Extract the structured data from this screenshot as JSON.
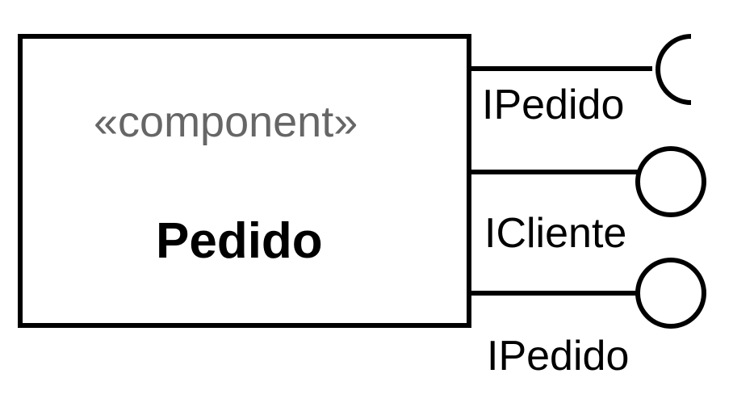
{
  "component": {
    "stereotype": "«component»",
    "name": "Pedido"
  },
  "interfaces": [
    {
      "label": "IPedido",
      "kind": "required",
      "symbol": "socket"
    },
    {
      "label": "ICliente",
      "kind": "provided",
      "symbol": "lollipop"
    },
    {
      "label": "IPedido",
      "kind": "provided",
      "symbol": "lollipop"
    }
  ],
  "colors": {
    "stroke": "#000000",
    "stereotype_text": "#666666",
    "background": "#ffffff"
  }
}
